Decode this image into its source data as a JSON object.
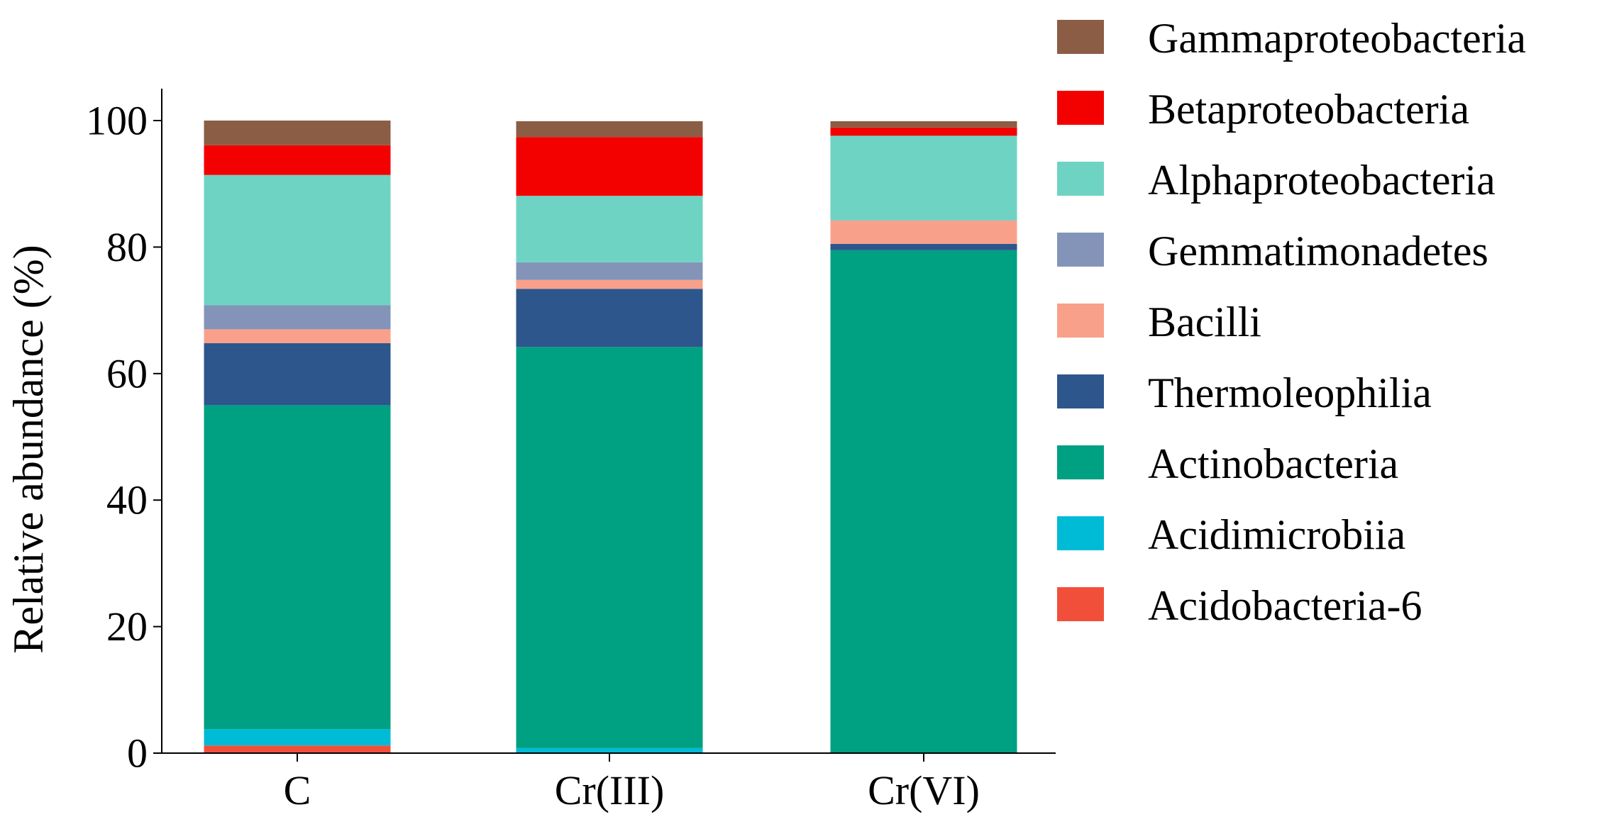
{
  "chart_data": {
    "type": "bar",
    "stacked": true,
    "title": "",
    "xlabel": "",
    "ylabel": "Relative abundance (%)",
    "ylim": [
      0,
      100
    ],
    "yticks": [
      0,
      20,
      40,
      60,
      80,
      100
    ],
    "grid": false,
    "legend_position": "right",
    "categories": [
      "C",
      "Cr(III)",
      "Cr(VI)"
    ],
    "series": [
      {
        "name": "Acidobacteria-6",
        "color": "#f24f3b",
        "values": [
          1.2,
          0.0,
          0.0
        ]
      },
      {
        "name": "Acidimicrobiia",
        "color": "#00bbd6",
        "values": [
          2.6,
          0.8,
          0.0
        ]
      },
      {
        "name": "Actinobacteria",
        "color": "#00a082",
        "values": [
          51.2,
          63.4,
          79.5
        ]
      },
      {
        "name": "Thermoleophilia",
        "color": "#2d568d",
        "values": [
          9.8,
          9.2,
          1.0
        ]
      },
      {
        "name": "Bacilli",
        "color": "#f9a08a",
        "values": [
          2.2,
          1.4,
          3.7
        ]
      },
      {
        "name": "Gemmatimonadetes",
        "color": "#8494b8",
        "values": [
          3.8,
          2.8,
          0.0
        ]
      },
      {
        "name": "Alphaproteobacteria",
        "color": "#6fd3c3",
        "values": [
          20.6,
          10.5,
          13.4
        ]
      },
      {
        "name": "Betaproteobacteria",
        "color": "#f30000",
        "values": [
          4.7,
          9.3,
          1.3
        ]
      },
      {
        "name": "Gammaproteobacteria",
        "color": "#8b5d44",
        "values": [
          3.9,
          2.5,
          1.0
        ]
      }
    ]
  }
}
